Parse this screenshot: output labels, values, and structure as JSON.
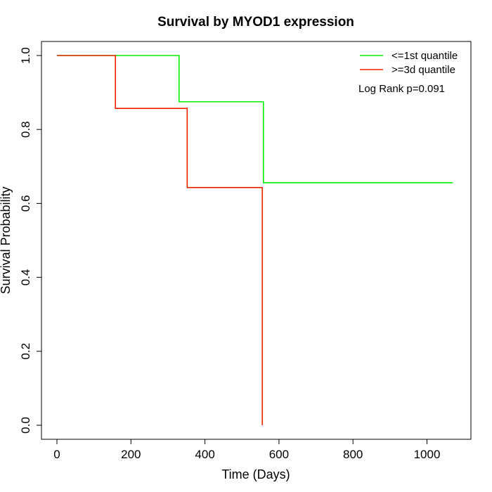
{
  "chart_data": {
    "type": "line",
    "title": "Survival by MYOD1 expression",
    "xlabel": "Time (Days)",
    "ylabel": "Survival Probability",
    "xlim": [
      0,
      1070
    ],
    "ylim": [
      0,
      1
    ],
    "xticks": [
      0,
      200,
      400,
      600,
      800,
      1000
    ],
    "yticks": [
      0.0,
      0.2,
      0.4,
      0.6,
      0.8,
      1.0
    ],
    "xtick_labels": [
      "0",
      "200",
      "400",
      "600",
      "800",
      "1000"
    ],
    "ytick_labels": [
      "0.0",
      "0.2",
      "0.4",
      "0.6",
      "0.8",
      "1.0"
    ],
    "grid": false,
    "legend_position": "top-right",
    "series": [
      {
        "name": "<=1st quantile",
        "color": "#00ee00",
        "step": true,
        "x": [
          0,
          330,
          558,
          1070
        ],
        "y": [
          1.0,
          0.875,
          0.656,
          0.656
        ]
      },
      {
        "name": ">=3d quantile",
        "color": "#ee2200",
        "step": true,
        "x": [
          0,
          158,
          352,
          555
        ],
        "y": [
          1.0,
          0.857,
          0.643,
          0.0
        ]
      }
    ],
    "annotation": "Log Rank p=0.091"
  }
}
